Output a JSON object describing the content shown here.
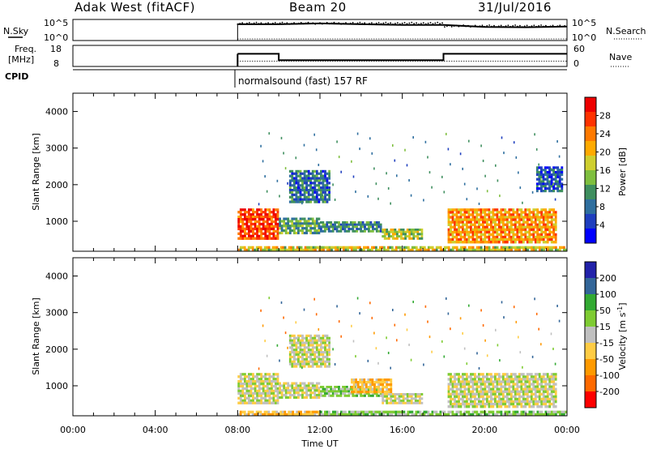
{
  "header": {
    "station": "Adak West (fitACF)",
    "beam": "Beam 20",
    "date": "31/Jul/2016"
  },
  "chart_data": [
    {
      "type": "line",
      "panel": "noise",
      "left_label": "N.Sky",
      "right_label": "N.Search",
      "y_ticks_left": [
        "10^5",
        "10^0"
      ],
      "y_ticks_right": [
        "10^5",
        "10^0"
      ],
      "x": [
        "08:00",
        "10:00",
        "12:00",
        "14:00",
        "16:00",
        "18:00",
        "20:00",
        "22:00",
        "24:00"
      ],
      "series": [
        {
          "values": [
            4.2,
            4.2,
            4.4,
            4.2,
            4.0,
            4.0,
            3.5,
            3.4,
            3.6
          ]
        }
      ]
    },
    {
      "type": "line",
      "panel": "frequency",
      "left_label": "Freq.",
      "left_units": "[MHz]",
      "right_label": "Nave",
      "y_ticks_left": [
        "18",
        "8"
      ],
      "y_ticks_right": [
        "60",
        "0"
      ],
      "freq_segments": [
        {
          "start": "08:00",
          "end": "10:00",
          "freq_mhz": 14.0
        },
        {
          "start": "10:00",
          "end": "18:00",
          "freq_mhz": 11.0
        },
        {
          "start": "18:00",
          "end": "24:00",
          "freq_mhz": 14.0
        }
      ],
      "nave": 15
    },
    {
      "type": "table",
      "panel": "cpid",
      "label": "CPID",
      "entries": [
        {
          "start": "08:00",
          "text": "normalsound (fast) 157 RF"
        }
      ]
    },
    {
      "type": "heatmap",
      "panel": "power",
      "ylabel": "Slant Range [km]",
      "y_ticks": [
        "4000",
        "3000",
        "2000",
        "1000"
      ],
      "ylim": [
        180,
        4500
      ],
      "colorbar": {
        "label": "Power [dB]",
        "ticks": [
          "28",
          "24",
          "20",
          "16",
          "12",
          "8",
          "4"
        ],
        "range": [
          0,
          32
        ]
      },
      "regions": [
        {
          "t": [
            8.0,
            10.0
          ],
          "r": [
            500,
            1350
          ],
          "power_db": 27
        },
        {
          "t": [
            10.0,
            12.0
          ],
          "r": [
            650,
            1100
          ],
          "power_db": 12
        },
        {
          "t": [
            12.0,
            15.0
          ],
          "r": [
            700,
            1000
          ],
          "power_db": 10
        },
        {
          "t": [
            15.0,
            17.0
          ],
          "r": [
            500,
            800
          ],
          "power_db": 16
        },
        {
          "t": [
            18.2,
            23.5
          ],
          "r": [
            400,
            1350
          ],
          "power_db": 22
        },
        {
          "t": [
            10.5,
            12.5
          ],
          "r": [
            1500,
            2400
          ],
          "power_db": 8
        },
        {
          "t": [
            22.5,
            23.8
          ],
          "r": [
            1800,
            2500
          ],
          "power_db": 6
        },
        {
          "t": [
            8.0,
            24.0
          ],
          "r": [
            180,
            320
          ],
          "power_db": 18
        }
      ]
    },
    {
      "type": "heatmap",
      "panel": "velocity",
      "ylabel": "Slant Range [km]",
      "y_ticks": [
        "4000",
        "3000",
        "2000",
        "1000"
      ],
      "ylim": [
        180,
        4500
      ],
      "colorbar": {
        "label": "Velocity [m s^-1]",
        "ticks": [
          "200",
          "100",
          "50",
          "15",
          "-15",
          "-50",
          "-100",
          "-200"
        ],
        "range": [
          -250,
          250
        ]
      },
      "regions": [
        {
          "t": [
            8.0,
            10.0
          ],
          "r": [
            500,
            1350
          ],
          "velocity": 0
        },
        {
          "t": [
            10.0,
            12.0
          ],
          "r": [
            650,
            1100
          ],
          "velocity": 0
        },
        {
          "t": [
            12.0,
            15.0
          ],
          "r": [
            700,
            1000
          ],
          "velocity": 30
        },
        {
          "t": [
            13.5,
            15.5
          ],
          "r": [
            800,
            1200
          ],
          "velocity": -40
        },
        {
          "t": [
            15.0,
            17.0
          ],
          "r": [
            500,
            800
          ],
          "velocity": 0
        },
        {
          "t": [
            18.2,
            23.5
          ],
          "r": [
            400,
            1350
          ],
          "velocity": 0
        },
        {
          "t": [
            10.5,
            12.5
          ],
          "r": [
            1500,
            2400
          ],
          "velocity": 0
        },
        {
          "t": [
            8.0,
            12.0
          ],
          "r": [
            180,
            320
          ],
          "velocity": -40
        },
        {
          "t": [
            12.0,
            24.0
          ],
          "r": [
            180,
            320
          ],
          "velocity": 30
        }
      ]
    }
  ],
  "x_axis": {
    "ticks": [
      "00:00",
      "04:00",
      "08:00",
      "12:00",
      "16:00",
      "20:00",
      "00:00"
    ],
    "label": "Time UT",
    "range_hours": [
      0,
      24
    ]
  }
}
